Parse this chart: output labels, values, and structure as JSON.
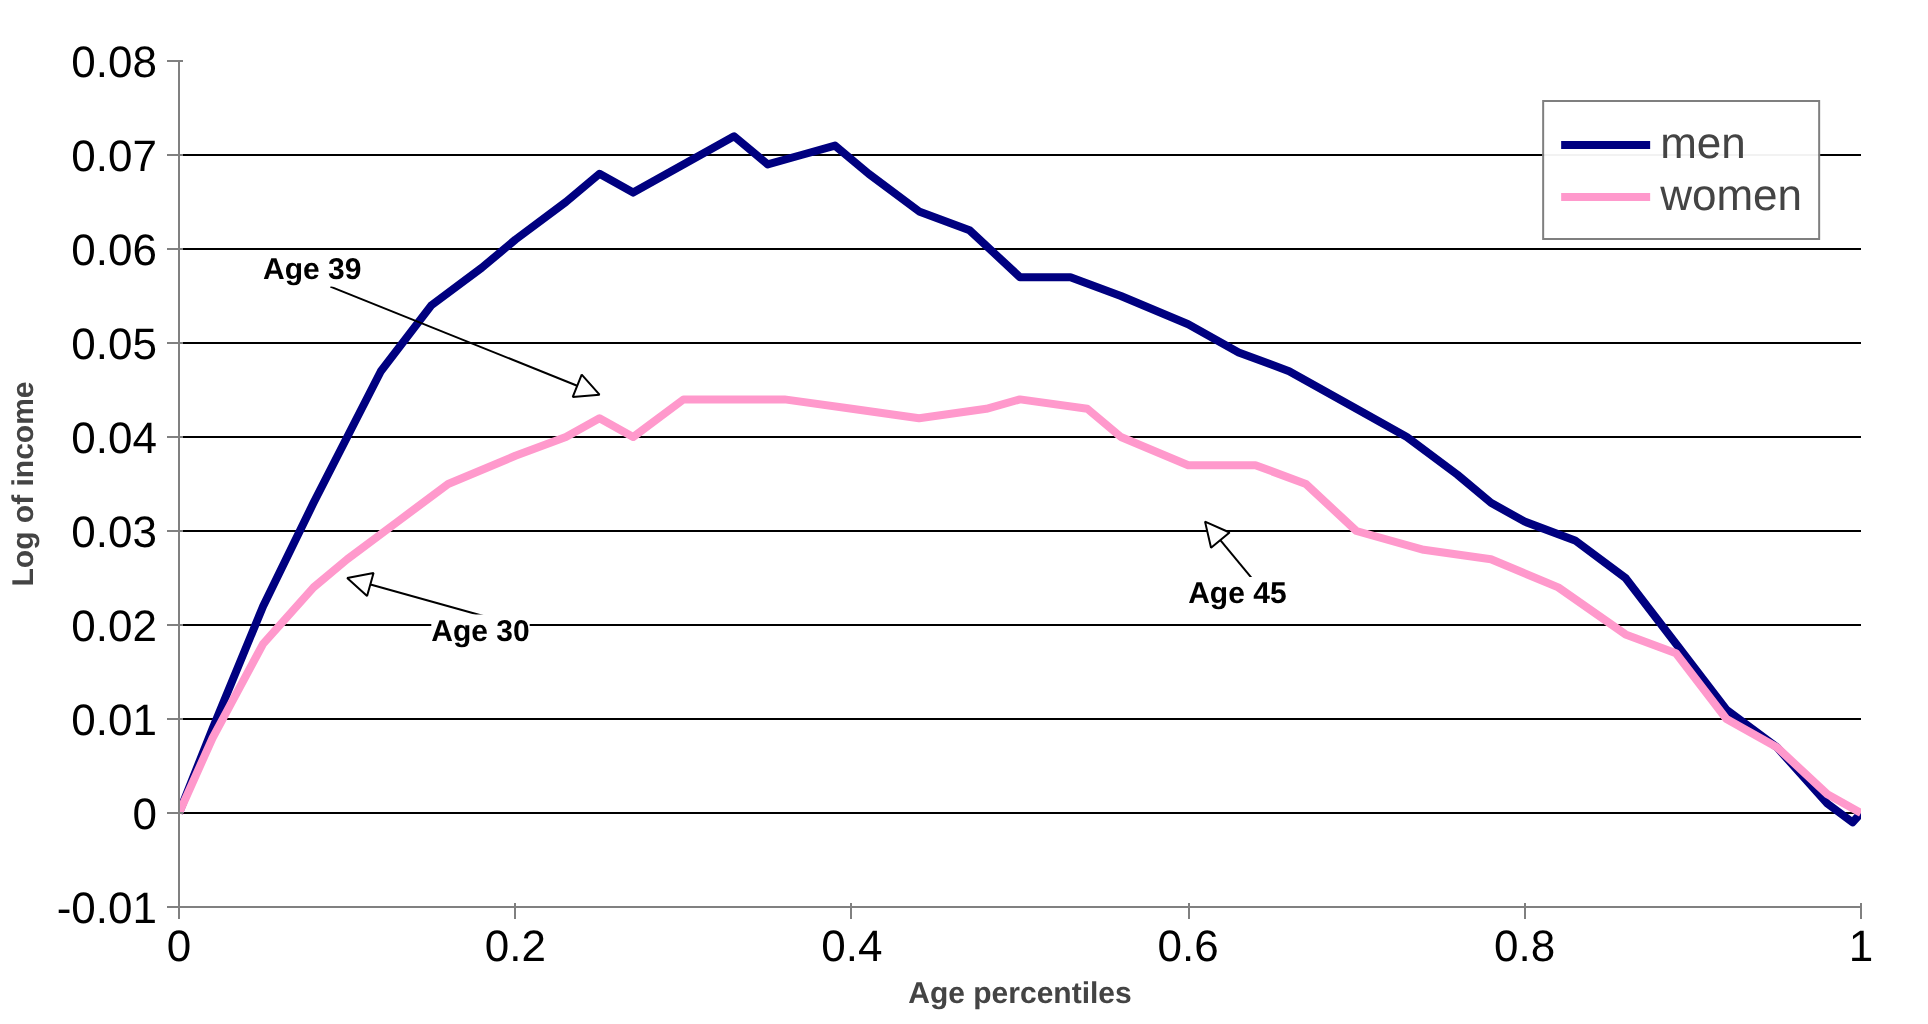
{
  "chart_data": {
    "type": "line",
    "xlabel": "Age percentiles",
    "ylabel": "Log of income",
    "xlim": [
      0,
      1
    ],
    "ylim": [
      -0.01,
      0.08
    ],
    "xticks": [
      0,
      0.2,
      0.4,
      0.6,
      0.8,
      1
    ],
    "yticks": [
      -0.01,
      0,
      0.01,
      0.02,
      0.03,
      0.04,
      0.05,
      0.06,
      0.07,
      0.08
    ],
    "grid": "y",
    "legend": "top right",
    "marker": "none",
    "line_style": "solid",
    "series": [
      {
        "name": "men",
        "color": "#000080",
        "x": [
          0,
          0.02,
          0.05,
          0.08,
          0.1,
          0.12,
          0.15,
          0.18,
          0.2,
          0.23,
          0.25,
          0.27,
          0.29,
          0.31,
          0.33,
          0.35,
          0.37,
          0.39,
          0.41,
          0.44,
          0.47,
          0.5,
          0.53,
          0.56,
          0.6,
          0.63,
          0.66,
          0.7,
          0.73,
          0.76,
          0.78,
          0.8,
          0.83,
          0.86,
          0.89,
          0.92,
          0.95,
          0.98,
          0.995,
          1
        ],
        "values": [
          0,
          0.009,
          0.022,
          0.033,
          0.04,
          0.047,
          0.054,
          0.058,
          0.061,
          0.065,
          0.068,
          0.066,
          0.068,
          0.07,
          0.072,
          0.069,
          0.07,
          0.071,
          0.068,
          0.064,
          0.062,
          0.057,
          0.057,
          0.055,
          0.052,
          0.049,
          0.047,
          0.043,
          0.04,
          0.036,
          0.033,
          0.031,
          0.029,
          0.025,
          0.018,
          0.011,
          0.007,
          0.001,
          -0.001,
          0
        ]
      },
      {
        "name": "women",
        "color": "#ff99cc",
        "x": [
          0,
          0.02,
          0.05,
          0.08,
          0.1,
          0.13,
          0.16,
          0.2,
          0.23,
          0.25,
          0.27,
          0.3,
          0.33,
          0.36,
          0.4,
          0.44,
          0.48,
          0.5,
          0.54,
          0.56,
          0.6,
          0.64,
          0.67,
          0.7,
          0.74,
          0.78,
          0.82,
          0.86,
          0.89,
          0.92,
          0.95,
          0.98,
          1
        ],
        "values": [
          0,
          0.008,
          0.018,
          0.024,
          0.027,
          0.031,
          0.035,
          0.038,
          0.04,
          0.042,
          0.04,
          0.044,
          0.044,
          0.044,
          0.043,
          0.042,
          0.043,
          0.044,
          0.043,
          0.04,
          0.037,
          0.037,
          0.035,
          0.03,
          0.028,
          0.027,
          0.024,
          0.019,
          0.017,
          0.01,
          0.007,
          0.002,
          0
        ]
      }
    ],
    "annotations": [
      "Age 39",
      "Age 30",
      "Age 45"
    ]
  }
}
